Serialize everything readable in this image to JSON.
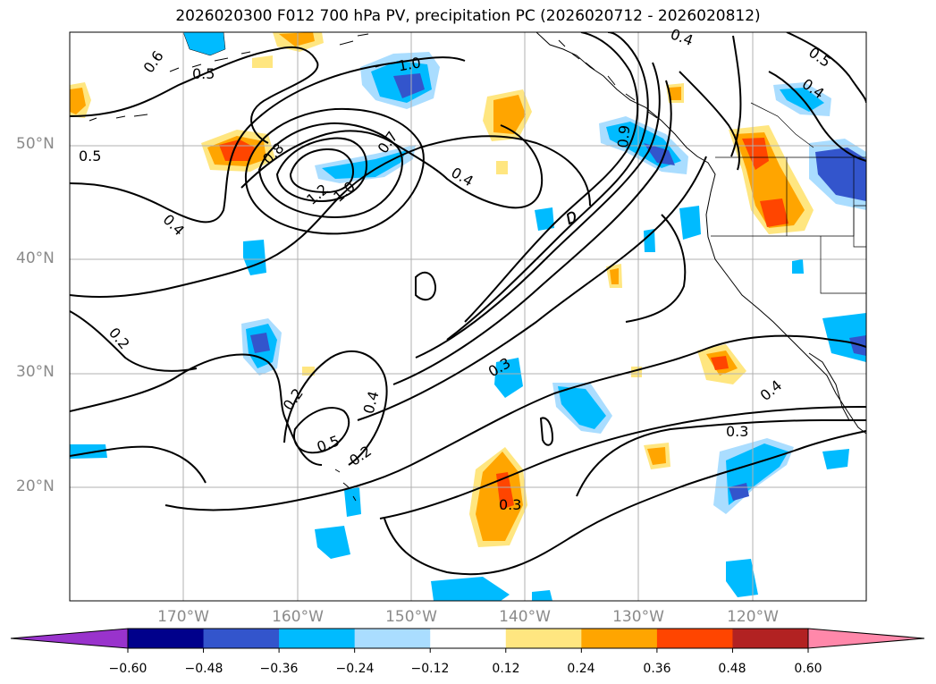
{
  "title": "2026020300 F012 700 hPa PV, precipitation PC (2026020712 - 2026020812)",
  "lat_labels": [
    "50°N",
    "40°N",
    "30°N",
    "20°N"
  ],
  "lon_labels": [
    "170°W",
    "160°W",
    "150°W",
    "140°W",
    "130°W",
    "120°W"
  ],
  "colorbar": {
    "ticks": [
      "−0.60",
      "−0.48",
      "−0.36",
      "−0.24",
      "−0.12",
      "0.12",
      "0.24",
      "0.36",
      "0.48",
      "0.60"
    ],
    "colors": [
      "#9933cc",
      "#00008b",
      "#3355cc",
      "#00bbff",
      "#aaddff",
      "#ffffff",
      "#ffe680",
      "#ffa500",
      "#ff4500",
      "#b22222",
      "#ff88aa"
    ]
  },
  "contour_labels": [
    "0.6",
    "0.5",
    "1.0",
    "0.4",
    "0.5",
    "0.4",
    "0.5",
    "0.8",
    "0.7",
    "1.2",
    "1.0",
    "0.4",
    "0.9",
    "0.4",
    "0.2",
    "0.3",
    "0.2",
    "0.4",
    "0.5",
    "0.2",
    "0.3",
    "0.3",
    "0.4"
  ],
  "colors": {
    "gridline": "#b0b0b0",
    "contour": "#000000",
    "coast": "#000000",
    "axis_label": "#8a8a8a"
  }
}
